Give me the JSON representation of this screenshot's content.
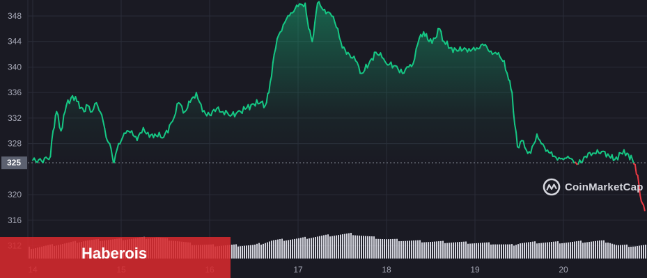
{
  "watermark": {
    "text": "CoinMarketCap",
    "icon": "coinmarketcap-logo-icon"
  },
  "banner": {
    "text": "Haberois",
    "color": "#d6292d"
  },
  "colors": {
    "background": "#1a1a23",
    "up": "#16c784",
    "down": "#ea3943",
    "volume": "#e3e4ee",
    "grid": "#2a2c38"
  },
  "chart_data": {
    "type": "line",
    "title": "",
    "xlabel": "",
    "ylabel": "",
    "ylim": [
      310,
      350.5
    ],
    "y_ticks": [
      312,
      316,
      320,
      328,
      332,
      336,
      340,
      344,
      348
    ],
    "x_ticks": [
      "14",
      "15",
      "16",
      "17",
      "18",
      "19",
      "20"
    ],
    "x_range": [
      14,
      20.92
    ],
    "current_value": 325,
    "current_label": "325",
    "grid": true,
    "series": [
      {
        "values": [
          [
            14.0,
            325.4
          ],
          [
            14.1,
            325.3
          ],
          [
            14.2,
            326.0
          ],
          [
            14.23,
            330.0
          ],
          [
            14.27,
            333.0
          ],
          [
            14.32,
            330.0
          ],
          [
            14.38,
            334.0
          ],
          [
            14.45,
            335.5
          ],
          [
            14.5,
            334.6
          ],
          [
            14.58,
            333.0
          ],
          [
            14.62,
            334.0
          ],
          [
            14.67,
            333.0
          ],
          [
            14.72,
            334.4
          ],
          [
            14.78,
            332.5
          ],
          [
            14.83,
            329.0
          ],
          [
            14.87,
            328.0
          ],
          [
            14.9,
            326.0
          ],
          [
            14.92,
            325.0
          ],
          [
            14.97,
            328.0
          ],
          [
            15.05,
            329.6
          ],
          [
            15.12,
            330.0
          ],
          [
            15.18,
            328.5
          ],
          [
            15.25,
            330.5
          ],
          [
            15.32,
            329.0
          ],
          [
            15.38,
            329.5
          ],
          [
            15.48,
            329.0
          ],
          [
            15.58,
            331.5
          ],
          [
            15.65,
            334.4
          ],
          [
            15.72,
            333.0
          ],
          [
            15.78,
            334.5
          ],
          [
            15.85,
            336.0
          ],
          [
            15.92,
            333.0
          ],
          [
            16.0,
            332.5
          ],
          [
            16.08,
            333.5
          ],
          [
            16.15,
            333.0
          ],
          [
            16.25,
            332.5
          ],
          [
            16.35,
            333.0
          ],
          [
            16.42,
            333.6
          ],
          [
            16.5,
            334.2
          ],
          [
            16.58,
            334.5
          ],
          [
            16.63,
            334.0
          ],
          [
            16.67,
            336.0
          ],
          [
            16.73,
            342.0
          ],
          [
            16.78,
            345.0
          ],
          [
            16.85,
            347.0
          ],
          [
            16.92,
            348.5
          ],
          [
            17.0,
            349.5
          ],
          [
            17.08,
            350.0
          ],
          [
            17.12,
            346.0
          ],
          [
            17.16,
            344.0
          ],
          [
            17.22,
            350.0
          ],
          [
            17.3,
            349.0
          ],
          [
            17.38,
            348.0
          ],
          [
            17.45,
            346.0
          ],
          [
            17.5,
            343.0
          ],
          [
            17.58,
            342.0
          ],
          [
            17.65,
            341.0
          ],
          [
            17.72,
            339.0
          ],
          [
            17.8,
            340.5
          ],
          [
            17.88,
            342.3
          ],
          [
            17.95,
            341.5
          ],
          [
            18.0,
            340.5
          ],
          [
            18.1,
            340.2
          ],
          [
            18.18,
            339.0
          ],
          [
            18.25,
            340.0
          ],
          [
            18.3,
            340.5
          ],
          [
            18.37,
            344.5
          ],
          [
            18.42,
            345.5
          ],
          [
            18.48,
            344.0
          ],
          [
            18.55,
            344.5
          ],
          [
            18.6,
            346.0
          ],
          [
            18.65,
            344.0
          ],
          [
            18.72,
            343.0
          ],
          [
            18.8,
            342.5
          ],
          [
            18.88,
            343.0
          ],
          [
            18.95,
            342.5
          ],
          [
            19.02,
            343.0
          ],
          [
            19.1,
            343.4
          ],
          [
            19.18,
            342.5
          ],
          [
            19.25,
            342.0
          ],
          [
            19.33,
            341.0
          ],
          [
            19.38,
            338.0
          ],
          [
            19.42,
            336.0
          ],
          [
            19.45,
            331.0
          ],
          [
            19.48,
            327.5
          ],
          [
            19.53,
            328.5
          ],
          [
            19.58,
            327.0
          ],
          [
            19.63,
            326.5
          ],
          [
            19.7,
            329.5
          ],
          [
            19.75,
            328.0
          ],
          [
            19.82,
            327.0
          ],
          [
            19.88,
            326.0
          ],
          [
            19.95,
            325.8
          ],
          [
            20.0,
            325.5
          ],
          [
            20.05,
            326.0
          ],
          [
            20.12,
            325.0
          ],
          [
            20.2,
            325.0
          ],
          [
            20.28,
            326.5
          ],
          [
            20.35,
            326.5
          ],
          [
            20.45,
            326.8
          ],
          [
            20.52,
            326.0
          ],
          [
            20.58,
            325.5
          ],
          [
            20.65,
            326.5
          ],
          [
            20.72,
            326.5
          ],
          [
            20.78,
            325.5
          ],
          [
            20.84,
            323.0
          ],
          [
            20.88,
            319.0
          ],
          [
            20.92,
            317.5
          ]
        ]
      }
    ],
    "volume": {
      "x": [
        14.0,
        14.2,
        14.4,
        14.6,
        14.8,
        15.0,
        15.2,
        15.4,
        15.6,
        15.8,
        16.0,
        16.2,
        16.4,
        16.5,
        16.7,
        17.0,
        17.3,
        17.6,
        17.8,
        18.0,
        18.2,
        18.5,
        18.8,
        19.0,
        19.2,
        19.4,
        19.5,
        19.7,
        20.0,
        20.2,
        20.4,
        20.5,
        20.6,
        20.8,
        20.92
      ],
      "values": [
        0.18,
        0.22,
        0.26,
        0.3,
        0.31,
        0.32,
        0.34,
        0.35,
        0.3,
        0.24,
        0.22,
        0.22,
        0.22,
        0.22,
        0.3,
        0.33,
        0.38,
        0.41,
        0.36,
        0.32,
        0.3,
        0.28,
        0.27,
        0.26,
        0.25,
        0.22,
        0.26,
        0.27,
        0.27,
        0.28,
        0.29,
        0.28,
        0.22,
        0.21,
        0.22
      ]
    }
  }
}
